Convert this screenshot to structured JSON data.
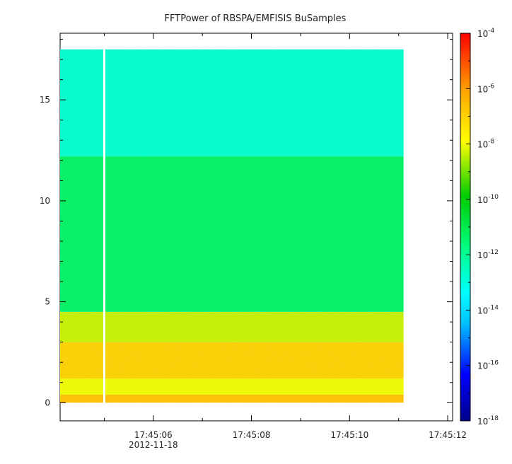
{
  "chart_data": {
    "type": "heatmap",
    "title": "FFTPower of RBSPA/EMFISIS  BuSamples",
    "xlabel": "",
    "ylabel": "",
    "x_ticks": [
      {
        "label": "17:45:06",
        "sublabel": "2012-11-18"
      },
      {
        "label": "17:45:08",
        "sublabel": ""
      },
      {
        "label": "17:45:10",
        "sublabel": ""
      },
      {
        "label": "17:45:12",
        "sublabel": ""
      }
    ],
    "x_range": [
      "17:45:04.1",
      "17:45:12.1"
    ],
    "y_ticks": [
      0,
      5,
      10,
      15
    ],
    "ylim": [
      -0.9,
      18.3
    ],
    "y_data_extent": [
      0,
      17.5
    ],
    "x_data_extent": [
      "17:45:04.1",
      "17:45:11.1"
    ],
    "gap_at": "17:45:05.0",
    "z_scale": "log",
    "z_range_exponent": [
      -18,
      -4
    ],
    "colorbar_ticks": [
      {
        "base": "10",
        "exp": "-4"
      },
      {
        "base": "10",
        "exp": "-6"
      },
      {
        "base": "10",
        "exp": "-8"
      },
      {
        "base": "10",
        "exp": "-10"
      },
      {
        "base": "10",
        "exp": "-12"
      },
      {
        "base": "10",
        "exp": "-14"
      },
      {
        "base": "10",
        "exp": "-16"
      },
      {
        "base": "10",
        "exp": "-18"
      }
    ],
    "colormap": [
      "#00008b",
      "#0000ff",
      "#00bfff",
      "#00ffff",
      "#00ff7f",
      "#00cc00",
      "#ffff00",
      "#ffa500",
      "#ff0000"
    ],
    "bands": [
      {
        "y_from": 0,
        "y_to": 0.4,
        "log_power": -6.3
      },
      {
        "y_from": 0.4,
        "y_to": 1.2,
        "log_power": -7.6
      },
      {
        "y_from": 1.2,
        "y_to": 3.0,
        "log_power": -6.6
      },
      {
        "y_from": 3.0,
        "y_to": 4.5,
        "log_power": -7.9
      },
      {
        "y_from": 4.5,
        "y_to": 12.2,
        "log_power": -10.6
      },
      {
        "y_from": 12.2,
        "y_to": 17.5,
        "log_power": -12.1
      }
    ]
  }
}
